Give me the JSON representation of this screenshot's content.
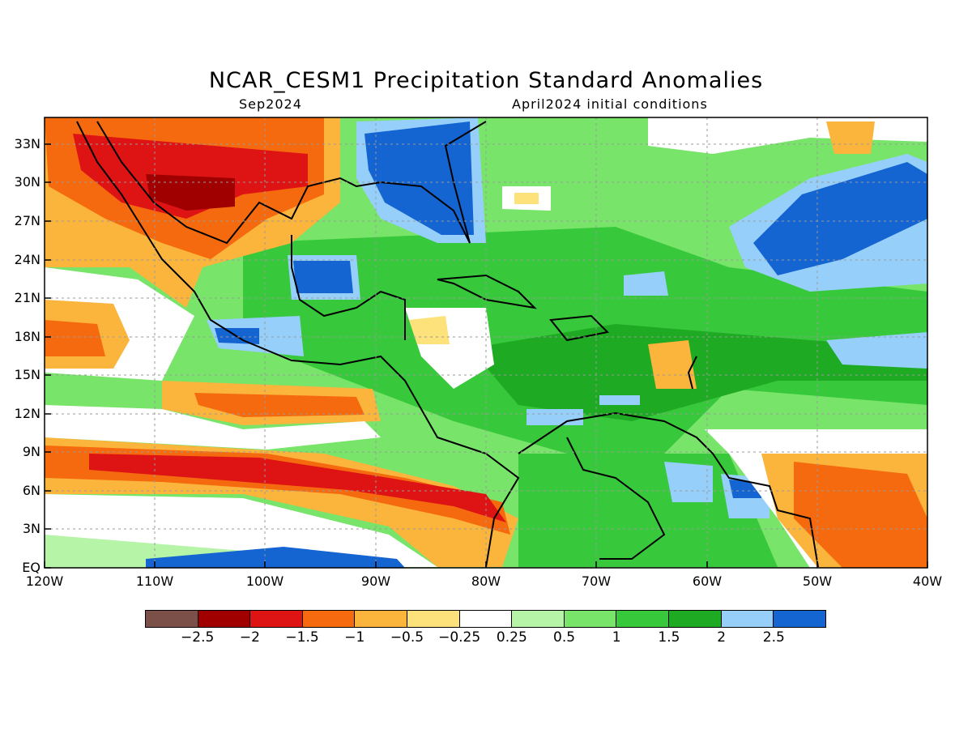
{
  "title": "NCAR_CESM1 Precipitation Standard Anomalies",
  "subtitle_left": "Sep2024",
  "subtitle_right": "April2024 initial conditions",
  "lat_labels": [
    "33N",
    "30N",
    "27N",
    "24N",
    "21N",
    "18N",
    "15N",
    "12N",
    "9N",
    "6N",
    "3N",
    "EQ"
  ],
  "lon_labels": [
    "120W",
    "110W",
    "100W",
    "90W",
    "80W",
    "70W",
    "60W",
    "50W",
    "40W"
  ],
  "colorbar": {
    "colors": [
      "#7a5048",
      "#a00000",
      "#de1414",
      "#f56a0f",
      "#fbb43c",
      "#fde17a",
      "#ffffff",
      "#b6f4a8",
      "#78e46a",
      "#38c83c",
      "#1eaa22",
      "#96d0fa",
      "#1464d2"
    ],
    "labels": [
      "−2.5",
      "−2",
      "−1.5",
      "−1",
      "−0.5",
      "−0.25",
      "0.25",
      "0.5",
      "1",
      "1.5",
      "2",
      "2.5"
    ]
  }
}
